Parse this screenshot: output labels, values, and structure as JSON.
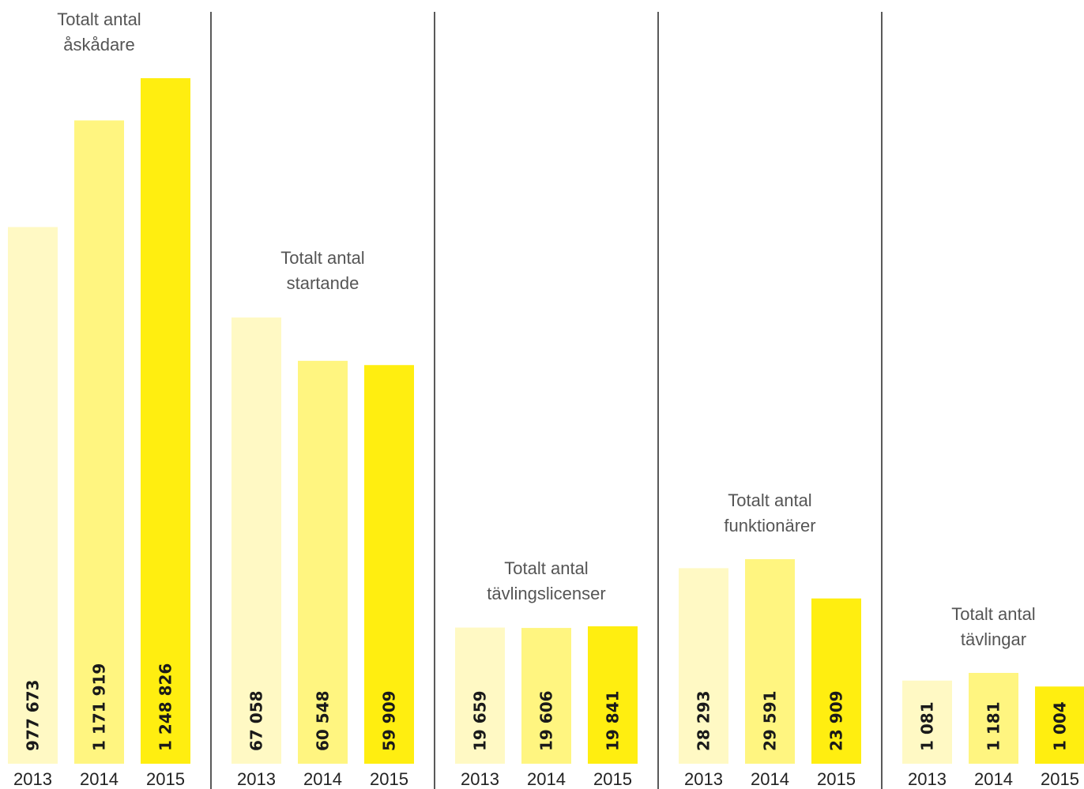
{
  "chart_data": [
    {
      "type": "bar",
      "title": "Totalt antal åskådare",
      "title_lines": [
        "Totalt antal",
        "åskådare"
      ],
      "categories": [
        "2013",
        "2014",
        "2015"
      ],
      "values": [
        977673,
        1171919,
        1248826
      ],
      "value_labels": [
        "977 673",
        "1 171 919",
        "1 248 826"
      ]
    },
    {
      "type": "bar",
      "title": "Totalt antal startande",
      "title_lines": [
        "Totalt antal",
        "startande"
      ],
      "categories": [
        "2013",
        "2014",
        "2015"
      ],
      "values": [
        67058,
        60548,
        59909
      ],
      "value_labels": [
        "67 058",
        "60 548",
        "59 909"
      ]
    },
    {
      "type": "bar",
      "title": "Totalt antal tävlingslicenser",
      "title_lines": [
        "Totalt antal",
        "tävlingslicenser"
      ],
      "categories": [
        "2013",
        "2014",
        "2015"
      ],
      "values": [
        19659,
        19606,
        19841
      ],
      "value_labels": [
        "19 659",
        "19 606",
        "19 841"
      ]
    },
    {
      "type": "bar",
      "title": "Totalt antal funktionärer",
      "title_lines": [
        "Totalt antal",
        "funktionärer"
      ],
      "categories": [
        "2013",
        "2014",
        "2015"
      ],
      "values": [
        28293,
        29591,
        23909
      ],
      "value_labels": [
        "28 293",
        "29 591",
        "23 909"
      ]
    },
    {
      "type": "bar",
      "title": "Totalt antal tävlingar",
      "title_lines": [
        "Totalt antal",
        "tävlingar"
      ],
      "categories": [
        "2013",
        "2014",
        "2015"
      ],
      "values": [
        1081,
        1181,
        1004
      ],
      "value_labels": [
        "1 081",
        "1 181",
        "1 004"
      ]
    }
  ],
  "colors": {
    "year_2013": "#fff9c4",
    "year_2014": "#fff580",
    "year_2015": "#ffee10",
    "divider": "#222222"
  }
}
